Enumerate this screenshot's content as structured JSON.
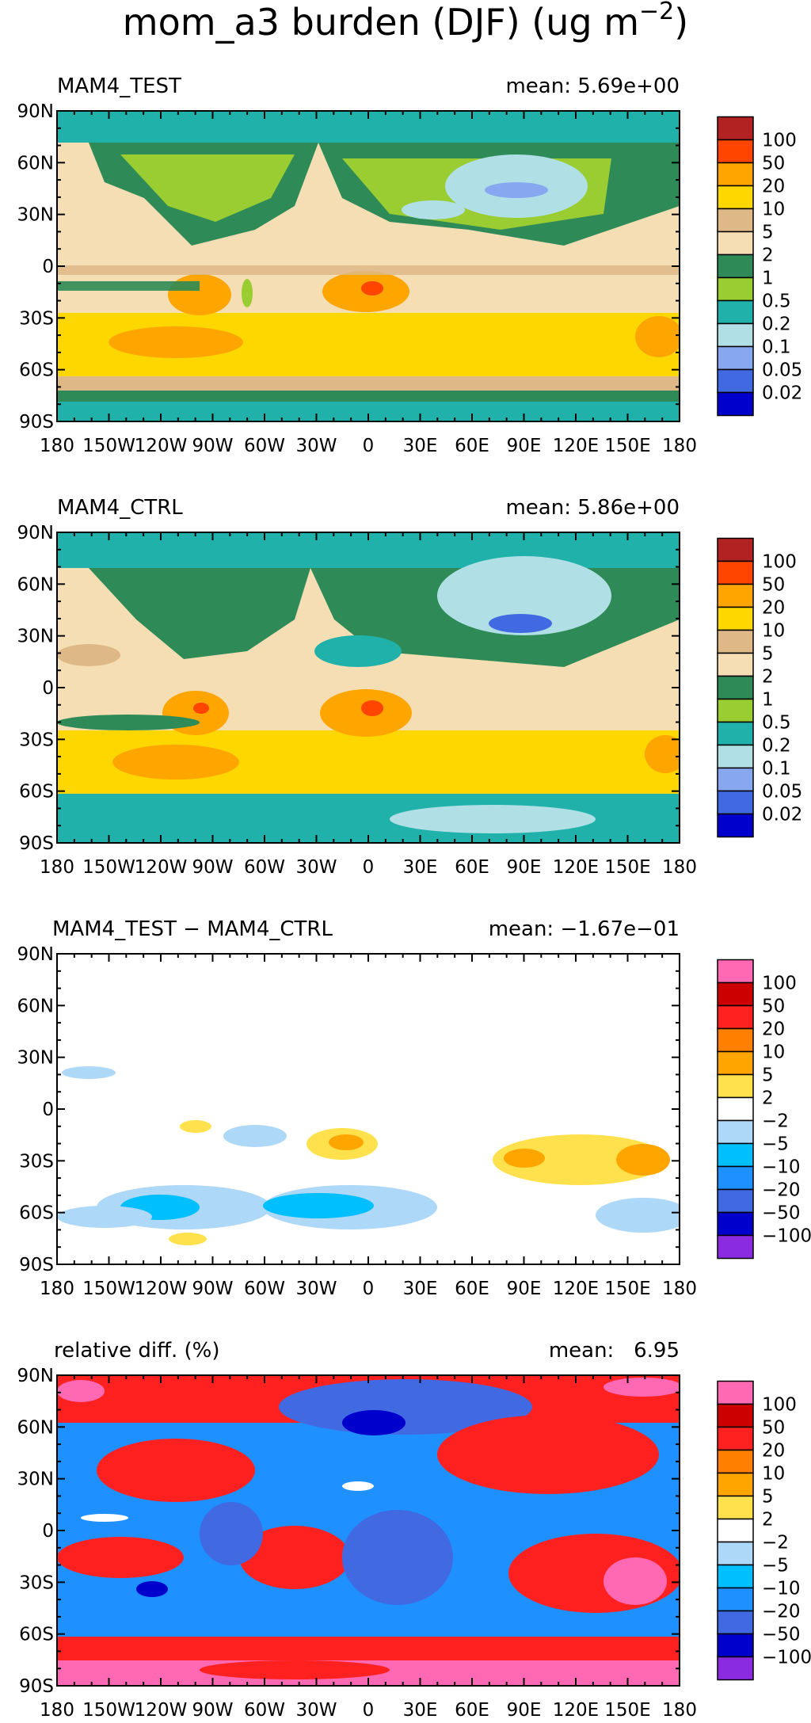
{
  "figure_title": "mom_a3 burden (DJF) (ug m",
  "title_superscript": "−2",
  "title_suffix": ")",
  "chart_data": [
    {
      "type": "contour-map",
      "left_title": "MAM4_TEST",
      "right_title": "mean: 5.69e+00",
      "mean": 5.69,
      "x_ticks": [
        "180",
        "150W",
        "120W",
        "90W",
        "60W",
        "30W",
        "0",
        "30E",
        "60E",
        "90E",
        "120E",
        "150E",
        "180"
      ],
      "y_ticks": [
        "90N",
        "60N",
        "30N",
        "0",
        "30S",
        "60S",
        "90S"
      ],
      "xlim": [
        -180,
        180
      ],
      "ylim": [
        -90,
        90
      ],
      "legend_levels": [
        "100",
        "50",
        "20",
        "10",
        "5",
        "2",
        "1",
        "0.5",
        "0.2",
        "0.1",
        "0.05",
        "0.02"
      ],
      "legend_colors": [
        "#b22222",
        "#ff4500",
        "#ffa500",
        "#ffd700",
        "#deb887",
        "#f5deb3",
        "#2e8b57",
        "#9acd32",
        "#20b2aa",
        "#b0e0e6",
        "#87a8f0",
        "#4169e1",
        "#0000cd"
      ]
    },
    {
      "type": "contour-map",
      "left_title": "MAM4_CTRL",
      "right_title": "mean: 5.86e+00",
      "mean": 5.86,
      "x_ticks": [
        "180",
        "150W",
        "120W",
        "90W",
        "60W",
        "30W",
        "0",
        "30E",
        "60E",
        "90E",
        "120E",
        "150E",
        "180"
      ],
      "y_ticks": [
        "90N",
        "60N",
        "30N",
        "0",
        "30S",
        "60S",
        "90S"
      ],
      "xlim": [
        -180,
        180
      ],
      "ylim": [
        -90,
        90
      ],
      "legend_levels": [
        "100",
        "50",
        "20",
        "10",
        "5",
        "2",
        "1",
        "0.5",
        "0.2",
        "0.1",
        "0.05",
        "0.02"
      ],
      "legend_colors": [
        "#b22222",
        "#ff4500",
        "#ffa500",
        "#ffd700",
        "#deb887",
        "#f5deb3",
        "#2e8b57",
        "#9acd32",
        "#20b2aa",
        "#b0e0e6",
        "#87a8f0",
        "#4169e1",
        "#0000cd"
      ]
    },
    {
      "type": "contour-map",
      "left_title": "MAM4_TEST − MAM4_CTRL",
      "right_title": "mean: −1.67e−01",
      "mean": -0.167,
      "x_ticks": [
        "180",
        "150W",
        "120W",
        "90W",
        "60W",
        "30W",
        "0",
        "30E",
        "60E",
        "90E",
        "120E",
        "150E",
        "180"
      ],
      "y_ticks": [
        "90N",
        "60N",
        "30N",
        "0",
        "30S",
        "60S",
        "90S"
      ],
      "xlim": [
        -180,
        180
      ],
      "ylim": [
        -90,
        90
      ],
      "legend_levels": [
        "100",
        "50",
        "20",
        "10",
        "5",
        "2",
        "−2",
        "−5",
        "−10",
        "−20",
        "−50",
        "−100"
      ],
      "legend_colors": [
        "#ff69b4",
        "#cc0000",
        "#ff2020",
        "#ff7f00",
        "#ffa500",
        "#ffe14d",
        "#ffffff",
        "#aed8f8",
        "#00bfff",
        "#1e90ff",
        "#4169e1",
        "#0000cd",
        "#8a2be2"
      ]
    },
    {
      "type": "contour-map",
      "left_title": "relative diff. (%)",
      "right_title": "mean:   6.95",
      "mean": 6.95,
      "x_ticks": [
        "180",
        "150W",
        "120W",
        "90W",
        "60W",
        "30W",
        "0",
        "30E",
        "60E",
        "90E",
        "120E",
        "150E",
        "180"
      ],
      "y_ticks": [
        "90N",
        "60N",
        "30N",
        "0",
        "30S",
        "60S",
        "90S"
      ],
      "xlim": [
        -180,
        180
      ],
      "ylim": [
        -90,
        90
      ],
      "legend_levels": [
        "100",
        "50",
        "20",
        "10",
        "5",
        "2",
        "−2",
        "−5",
        "−10",
        "−20",
        "−50",
        "−100"
      ],
      "legend_colors": [
        "#ff69b4",
        "#cc0000",
        "#ff2020",
        "#ff7f00",
        "#ffa500",
        "#ffe14d",
        "#ffffff",
        "#aed8f8",
        "#00bfff",
        "#1e90ff",
        "#4169e1",
        "#0000cd",
        "#8a2be2"
      ]
    }
  ]
}
